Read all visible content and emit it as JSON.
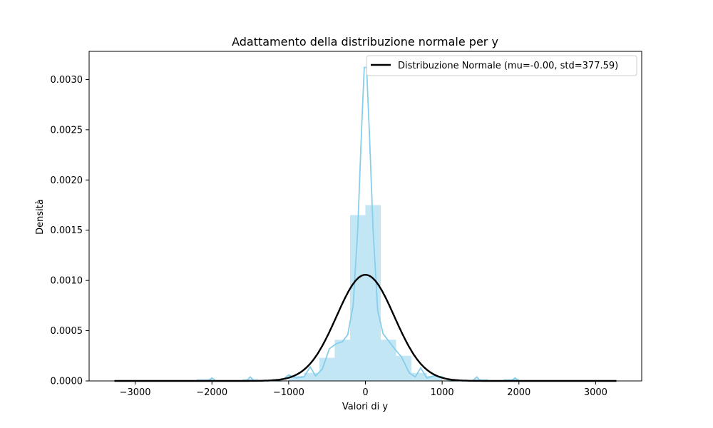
{
  "chart_data": {
    "type": "histogram",
    "title": "Adattamento della distribuzione normale per y",
    "xlabel": "Valori di y",
    "ylabel": "Densità",
    "xlim": [
      -3600,
      3600
    ],
    "ylim": [
      0,
      0.00328
    ],
    "x_ticks": [
      -3000,
      -2000,
      -1000,
      0,
      1000,
      2000,
      3000
    ],
    "x_tick_labels": [
      "−3000",
      "−2000",
      "−1000",
      "0",
      "1000",
      "2000",
      "3000"
    ],
    "y_ticks": [
      0,
      0.0005,
      0.001,
      0.0015,
      0.002,
      0.0025,
      0.003
    ],
    "y_tick_labels": [
      "0.0000",
      "0.0005",
      "0.0010",
      "0.0015",
      "0.0020",
      "0.0025",
      "0.0030"
    ],
    "grid": false,
    "legend_position": "top-right",
    "histogram": {
      "color": "#87ceeb",
      "bins": [
        {
          "x0": -3000,
          "x1": -2800,
          "density": 0.0
        },
        {
          "x0": -2800,
          "x1": -2600,
          "density": 0.0
        },
        {
          "x0": -2200,
          "x1": -2000,
          "density": 2e-05
        },
        {
          "x0": -1600,
          "x1": -1400,
          "density": 2e-05
        },
        {
          "x0": -1000,
          "x1": -800,
          "density": 5e-05
        },
        {
          "x0": -800,
          "x1": -600,
          "density": 8e-05
        },
        {
          "x0": -600,
          "x1": -400,
          "density": 0.00023
        },
        {
          "x0": -400,
          "x1": -200,
          "density": 0.00041
        },
        {
          "x0": -200,
          "x1": 0,
          "density": 0.00165
        },
        {
          "x0": 0,
          "x1": 200,
          "density": 0.00175
        },
        {
          "x0": 200,
          "x1": 400,
          "density": 0.00041
        },
        {
          "x0": 400,
          "x1": 600,
          "density": 0.00025
        },
        {
          "x0": 600,
          "x1": 800,
          "density": 8e-05
        },
        {
          "x0": 800,
          "x1": 1000,
          "density": 5e-05
        },
        {
          "x0": 1400,
          "x1": 1600,
          "density": 2e-05
        },
        {
          "x0": 1800,
          "x1": 2000,
          "density": 2e-05
        }
      ]
    },
    "kde": {
      "color": "#87ceeb",
      "points": [
        [
          -3000,
          0.0
        ],
        [
          -2200,
          0.0
        ],
        [
          -2050,
          0.0
        ],
        [
          -2000,
          3e-05
        ],
        [
          -1950,
          0.0
        ],
        [
          -1900,
          0.0
        ],
        [
          -1550,
          0.0
        ],
        [
          -1500,
          4e-05
        ],
        [
          -1450,
          0.0
        ],
        [
          -1100,
          0.0
        ],
        [
          -1000,
          6e-05
        ],
        [
          -900,
          3e-05
        ],
        [
          -800,
          4e-05
        ],
        [
          -720,
          0.00014
        ],
        [
          -650,
          5e-05
        ],
        [
          -560,
          0.00012
        ],
        [
          -470,
          0.00032
        ],
        [
          -380,
          0.00037
        ],
        [
          -300,
          0.00039
        ],
        [
          -230,
          0.00046
        ],
        [
          -160,
          0.00075
        ],
        [
          -100,
          0.0015
        ],
        [
          -50,
          0.0025
        ],
        [
          -15,
          0.00312
        ],
        [
          15,
          0.00312
        ],
        [
          50,
          0.0025
        ],
        [
          100,
          0.0015
        ],
        [
          160,
          0.0007
        ],
        [
          230,
          0.00047
        ],
        [
          300,
          0.0004
        ],
        [
          390,
          0.00031
        ],
        [
          470,
          0.00024
        ],
        [
          570,
          8e-05
        ],
        [
          650,
          4e-05
        ],
        [
          720,
          0.00013
        ],
        [
          800,
          3e-05
        ],
        [
          900,
          5e-05
        ],
        [
          1000,
          4e-05
        ],
        [
          1100,
          0.0
        ],
        [
          1400,
          0.0
        ],
        [
          1450,
          4e-05
        ],
        [
          1500,
          0.0
        ],
        [
          1900,
          0.0
        ],
        [
          1950,
          3e-05
        ],
        [
          2000,
          0.0
        ],
        [
          3000,
          0.0
        ]
      ]
    },
    "series": [
      {
        "name": "Distribuzione Normale (mu=-0.00, std=377.59)",
        "type": "line",
        "color": "#000000",
        "mu": 0.0,
        "std": 377.59,
        "x_range": [
          -3270,
          3270
        ]
      }
    ]
  }
}
